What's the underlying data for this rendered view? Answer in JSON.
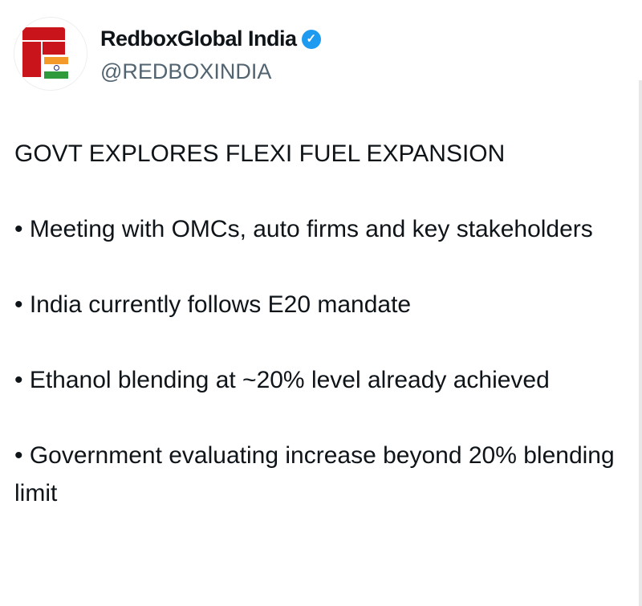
{
  "author": {
    "name": "RedboxGlobal India",
    "handle": "@REDBOXINDIA",
    "verified_icon": "verified-badge-icon",
    "badge_color": "#1d9bf0"
  },
  "post": {
    "headline": "GOVT EXPLORES FLEXI FUEL EXPANSION",
    "bullets": [
      "• Meeting with OMCs, auto firms and key stakeholders",
      "• India currently follows E20 mandate",
      "• Ethanol blending at ~20% level already achieved",
      "• Government evaluating increase beyond 20% blending limit"
    ]
  }
}
